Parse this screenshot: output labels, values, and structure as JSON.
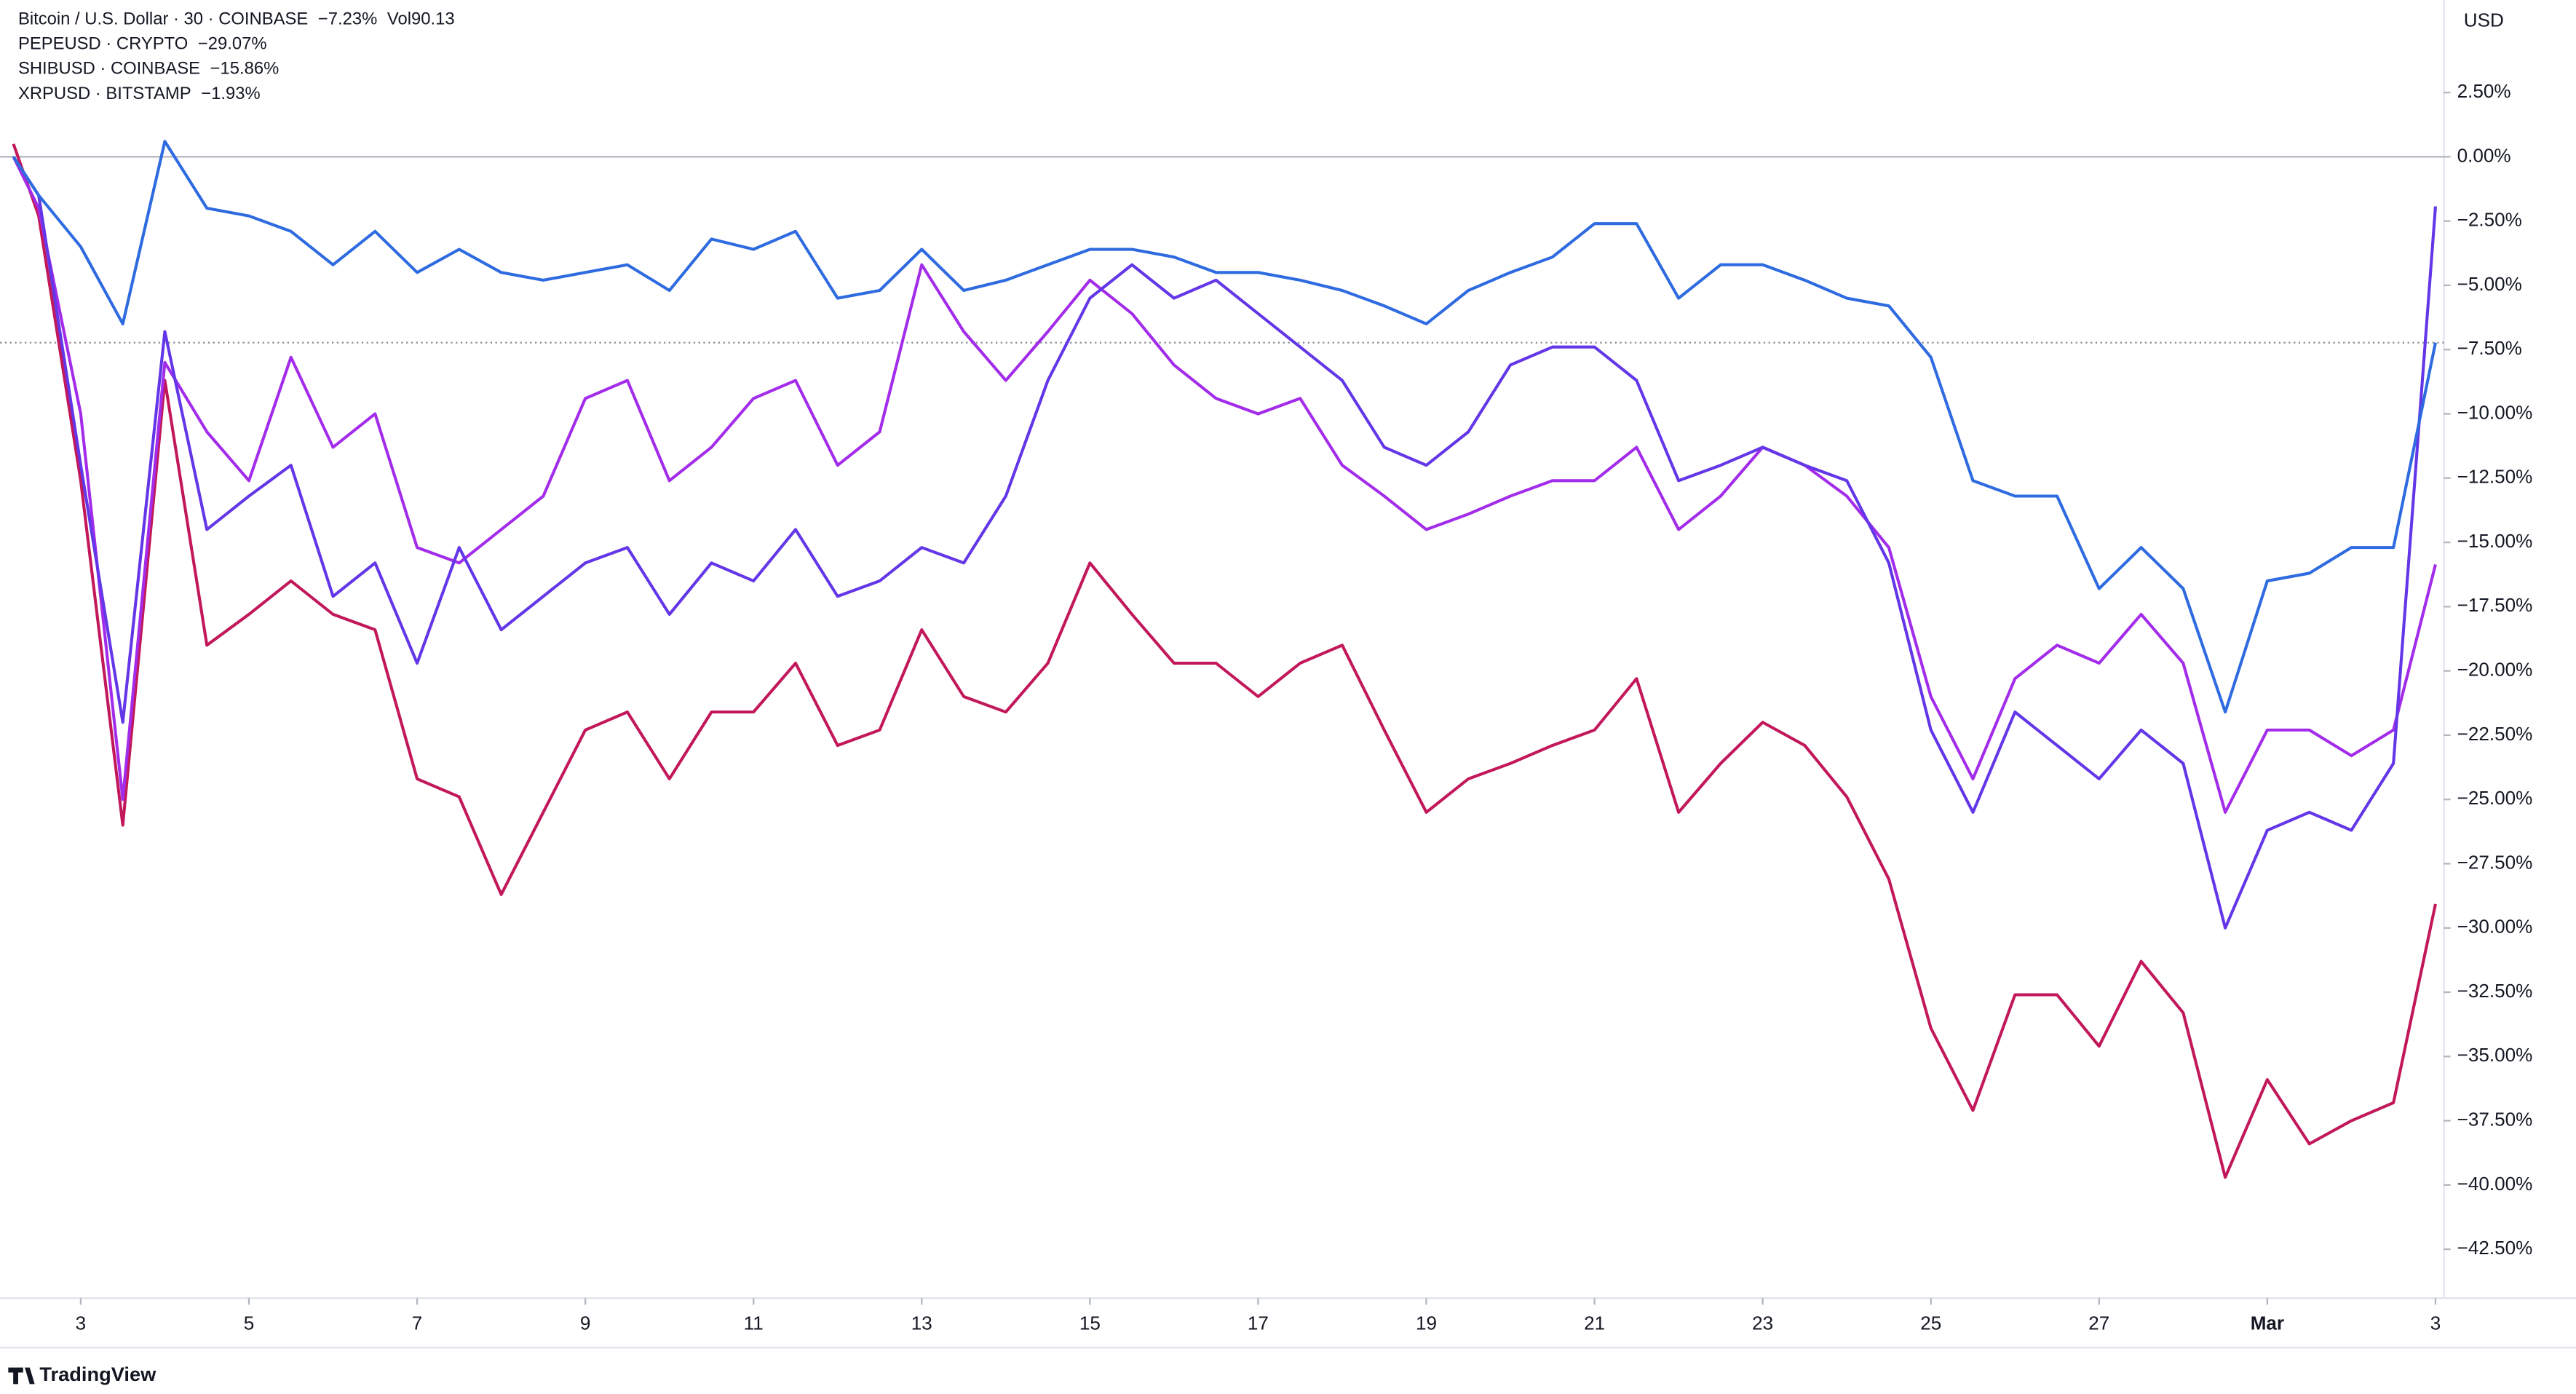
{
  "chart_data": {
    "type": "line",
    "currency": "USD",
    "brand": "TradingView",
    "volume_label": "Vol",
    "volume": 90.13,
    "x": [
      2.2,
      2.5,
      3,
      3.5,
      4,
      4.5,
      5,
      5.5,
      6,
      6.5,
      7,
      7.5,
      8,
      8.5,
      9,
      9.5,
      10,
      10.5,
      11,
      11.5,
      12,
      12.5,
      13,
      13.5,
      14,
      14.5,
      15,
      15.5,
      16,
      16.5,
      17,
      17.5,
      18,
      18.5,
      19,
      19.5,
      20,
      20.5,
      21,
      21.5,
      22,
      22.5,
      23,
      23.5,
      24,
      24.5,
      25,
      25.5,
      26,
      26.5,
      27,
      27.5,
      28,
      28.5,
      29,
      29.5,
      30,
      30.5,
      31
    ],
    "xlim": [
      2.04,
      31.1
    ],
    "xticks": [
      3,
      5,
      7,
      9,
      11,
      13,
      15,
      17,
      19,
      21,
      23,
      25,
      27,
      {
        "value": 29,
        "label": "Mar"
      },
      {
        "value": 31,
        "label": "3"
      }
    ],
    "ylim": [
      -44.4,
      6.1
    ],
    "yticks": [
      {
        "value": 2.5,
        "label": "2.50%"
      },
      {
        "value": 0,
        "label": "0.00%"
      },
      {
        "value": -2.5,
        "label": "−2.50%"
      },
      {
        "value": -5,
        "label": "−5.00%"
      },
      {
        "value": -7.5,
        "label": "−7.50%"
      },
      {
        "value": -10,
        "label": "−10.00%"
      },
      {
        "value": -12.5,
        "label": "−12.50%"
      },
      {
        "value": -15,
        "label": "−15.00%"
      },
      {
        "value": -17.5,
        "label": "−17.50%"
      },
      {
        "value": -20,
        "label": "−20.00%"
      },
      {
        "value": -22.5,
        "label": "−22.50%"
      },
      {
        "value": -25,
        "label": "−25.00%"
      },
      {
        "value": -27.5,
        "label": "−27.50%"
      },
      {
        "value": -30,
        "label": "−30.00%"
      },
      {
        "value": -32.5,
        "label": "−32.50%"
      },
      {
        "value": -35,
        "label": "−35.00%"
      },
      {
        "value": -37.5,
        "label": "−37.50%"
      },
      {
        "value": -40,
        "label": "−40.00%"
      },
      {
        "value": -42.5,
        "label": "−42.50%"
      }
    ],
    "series": [
      {
        "name": "Bitcoin / U.S. Dollar · 30 · COINBASE",
        "legend_value": "−7.23%",
        "color": "#2f6be0",
        "values": [
          0,
          -1.5,
          -3.5,
          -6.5,
          0.6,
          -2,
          -2.3,
          -2.9,
          -4.2,
          -2.9,
          -4.5,
          -3.6,
          -4.5,
          -4.8,
          -4.5,
          -4.2,
          -5.2,
          -3.2,
          -3.6,
          -2.9,
          -5.5,
          -5.2,
          -3.6,
          -5.2,
          -4.8,
          -4.2,
          -3.6,
          -3.6,
          -3.9,
          -4.5,
          -4.5,
          -4.8,
          -5.2,
          -5.8,
          -6.5,
          -5.2,
          -4.5,
          -3.9,
          -2.6,
          -2.6,
          -5.5,
          -4.2,
          -4.2,
          -4.8,
          -5.5,
          -5.8,
          -7.8,
          -12.6,
          -13.2,
          -13.2,
          -16.8,
          -15.2,
          -16.8,
          -21.6,
          -16.5,
          -16.2,
          -15.2,
          -15.2,
          -7.23
        ]
      },
      {
        "name": "PEPEUSD · CRYPTO",
        "legend_value": "−29.07%",
        "color": "#c2185b",
        "values": [
          0.5,
          -2.3,
          -12.6,
          -26,
          -8.7,
          -19,
          -17.8,
          -16.5,
          -17.8,
          -18.4,
          -24.2,
          -24.9,
          -28.7,
          -25.5,
          -22.3,
          -21.6,
          -24.2,
          -21.6,
          -21.6,
          -19.7,
          -22.9,
          -22.3,
          -18.4,
          -21,
          -21.6,
          -19.7,
          -15.8,
          -17.8,
          -19.7,
          -19.7,
          -21,
          -19.7,
          -19,
          -22.3,
          -25.5,
          -24.2,
          -23.6,
          -22.9,
          -22.3,
          -20.3,
          -25.5,
          -23.6,
          -22,
          -22.9,
          -24.9,
          -28.1,
          -33.9,
          -37.1,
          -32.6,
          -32.6,
          -34.6,
          -31.3,
          -33.3,
          -39.7,
          -35.9,
          -38.4,
          -37.5,
          -36.8,
          -29.07
        ]
      },
      {
        "name": "SHIBUSD · COINBASE",
        "legend_value": "−15.86%",
        "color": "#a32cea",
        "values": [
          0,
          -2,
          -10,
          -25,
          -8,
          -10.7,
          -12.6,
          -7.8,
          -11.3,
          -10,
          -15.2,
          -15.8,
          -14.5,
          -13.2,
          -9.4,
          -8.7,
          -12.6,
          -11.3,
          -9.4,
          -8.7,
          -12,
          -10.7,
          -4.2,
          -6.8,
          -8.7,
          -6.8,
          -4.8,
          -6.1,
          -8.1,
          -9.4,
          -10,
          -9.4,
          -12,
          -13.2,
          -14.5,
          -13.9,
          -13.2,
          -12.6,
          -12.6,
          -11.3,
          -14.5,
          -13.2,
          -11.3,
          -12,
          -13.2,
          -15.2,
          -21,
          -24.2,
          -20.3,
          -19,
          -19.7,
          -17.8,
          -19.7,
          -25.5,
          -22.3,
          -22.3,
          -23.3,
          -22.3,
          -15.86
        ]
      },
      {
        "name": "XRPUSD · BITSTAMP",
        "legend_value": "−1.93%",
        "color": "#6336e8",
        "values": [
          0,
          -1.5,
          -12,
          -22,
          -6.8,
          -14.5,
          -13.2,
          -12,
          -17.1,
          -15.8,
          -19.7,
          -15.2,
          -18.4,
          -17.1,
          -15.8,
          -15.2,
          -17.8,
          -15.8,
          -16.5,
          -14.5,
          -17.1,
          -16.5,
          -15.2,
          -15.8,
          -13.2,
          -8.7,
          -5.5,
          -4.2,
          -5.5,
          -4.8,
          -6.1,
          -7.4,
          -8.7,
          -11.3,
          -12,
          -10.7,
          -8.1,
          -7.4,
          -7.4,
          -8.7,
          -12.6,
          -12,
          -11.3,
          -12,
          -12.6,
          -15.8,
          -22.3,
          -25.5,
          -21.6,
          -22.9,
          -24.2,
          -22.3,
          -23.6,
          -30,
          -26.2,
          -25.5,
          -26.2,
          -23.6,
          -1.93
        ]
      }
    ]
  }
}
